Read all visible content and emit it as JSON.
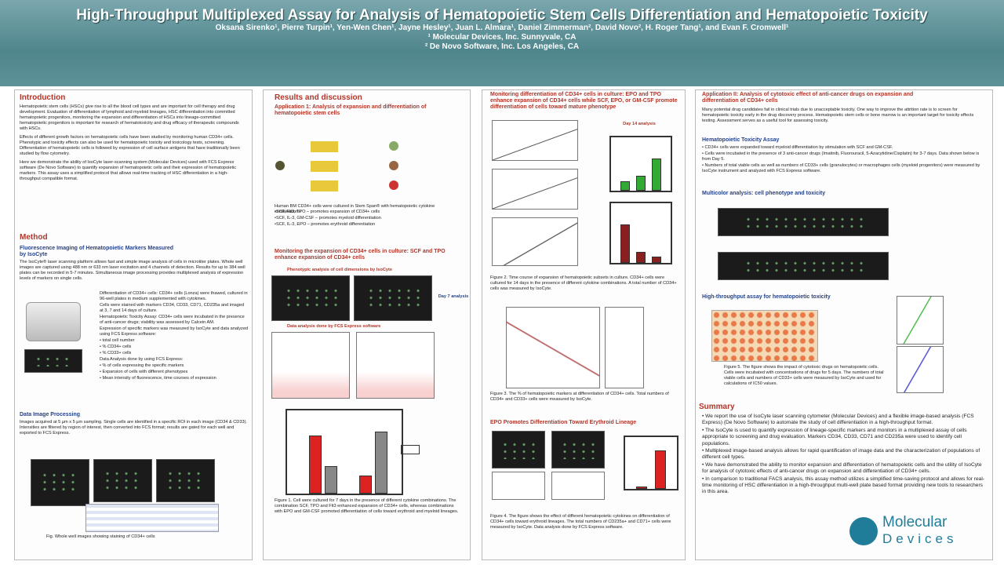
{
  "header": {
    "title": "High-Throughput Multiplexed Assay for Analysis of Hematopoietic Stem Cells Differentiation and Hematopoietic Toxicity",
    "authors": "Oksana Sirenko¹, Pierre Turpin¹, Yen-Wen Chen¹, Jayne Hesley¹, Juan L. Almara¹, Daniel Zimmerman², David Novo², H. Roger Tang¹, and Evan F. Cromwell¹",
    "affiliations": [
      "¹ Molecular Devices, Inc. Sunnyvale, CA",
      "² De Novo Software, Inc. Los Angeles, CA"
    ]
  },
  "intro": {
    "heading": "Introduction",
    "paragraphs": [
      "Hematopoietic stem cells (HSCs) give rise to all the blood cell types and are important for cell therapy and drug development. Evaluation of differentiation of lymphoid and myeloid lineages, HSC differentiation into committed hematopoietic progenitors, monitoring the expansion and differentiation of HSCs into lineage-committed hematopoietic progenitors is important for research of hematotoxicity and drug efficacy of therapeutic compounds with HSCs.",
      "Effects of different growth factors on hematopoietic cells have been studied by monitoring human CD34+ cells. Phenotypic and toxicity effects can also be used for hematopoietic toxicity and toxicology tests, screening. Differentiation of hematopoietic cells is followed by expression of cell surface antigens that have traditionally been studied by flow cytometry.",
      "Here we demonstrate the ability of IsoCyte laser-scanning system (Molecular Devices) used with FCS Express software (De Novo Software) to quantify expansion of hematopoietic cells and their expression of hematopoietic markers. This assay uses a simplified protocol that allows real-time tracking of HSC differentiation in a high-throughput compatible format."
    ]
  },
  "method": {
    "heading": "Method",
    "subheading": "Fluorescence Imaging of Hematopoietic Markers Measured by IsoCyte",
    "text": "The IsoCyte® laser scanning platform allows fast and simple image analysis of cells in microtiter plates. Whole well images are captured using 488 nm or 633 nm laser excitation and 4 channels of detection. Results for up to 384 well plates can be recorded in 5-7 minutes. Simultaneous image processing provides multiplexed analysis of expression levels of markers on single cells.",
    "items": [
      "Differentiation of CD34+ cells: CD34+ cells (Lonza) were thawed, cultured in 96-well plates in medium supplemented with cytokines.",
      "Cells were stained with markers CD34, CD33, CD71, CD235a and imaged at 3, 7 and 14 days of culture.",
      "Hematopoietic Toxicity Assay: CD34+ cells were incubated in the presence of anti-cancer drugs; viability was assessed by Calcein AM.",
      "Expression of specific markers was measured by IsoCyte and data analyzed using FCS Express software:",
      "• total cell number",
      "• % CD34+ cells",
      "• % CD33+ cells",
      "Data Analysis done by using FCS Express:",
      "• % of cells expressing the specific markers",
      "• Expansion of cells with different phenotypes",
      "• Mean intensity of fluorescence, time courses of expression"
    ],
    "processing_heading": "Data Image Processing",
    "processing_text": "Images acquired at 5 µm x 5 µm sampling. Single cells are identified in a specific ROI in each image (CD34 & CD33). Intensities are filtered by region of interest, then converted into FCS format; results are gated for each well and exported to FCS Express.",
    "figure_caption": "Fig. Whole well images showing staining of CD34+ cells"
  },
  "results": {
    "heading": "Results and discussion",
    "app1": "Application 1: Analysis of expansion and differentiation of hematopoietic stem cells",
    "diagram_text": "Human BM CD34+ cells were cultured in Stem Span® with hematopoietic cytokine combinations:",
    "diagram_items": [
      "•SCF, Flt3, TPO – promotes expansion of CD34+ cells",
      "•SCF, IL-3, GM-CSF – promotes myeloid differentiation",
      "•SCF, IL-3, EPO – promotes erythroid differentiation"
    ],
    "monitor": "Monitoring the expansion of CD34+ cells in culture: SCF and TPO enhance expansion of CD34+ cells",
    "pheno": "Phenotypic analysis of cell dimensions by IsoCyte",
    "day_label": "Day 7 analysis",
    "fcs": "Data analysis done by FCS Express software",
    "caption": "Figure 1. Cell were cultured for 7 days in the presence of different cytokine combinations. The combination SCF, TPO and Flt3 enhanced expansion of CD34+ cells, whereas combinations with EPO and GM-CSF promoted differentiation of cells toward erythroid and myeloid lineages."
  },
  "col3": {
    "heading": "Monitoring differentiation of CD34+ cells in culture: EPO and TPO enhance expansion of CD34+ cells while SCF, EPO, or GM-CSF promote differentiation of cells toward mature phenotype",
    "day_label": "Day 14 analysis",
    "caption2": "Figure 2. Time course of expansion of hematopoietic subsets in culture. CD34+ cells were cultured for 14 days in the presence of different cytokine combinations. A total number of CD34+ cells was measured by IsoCyte.",
    "caption3": "Figure 3. The % of hematopoietic markers at differentiation of CD34+ cells. Total numbers of CD34+ and CD33+ cells were measured by IsoCyte.",
    "epo": "EPO Promotes Differentiation Toward Erythroid Lineage",
    "caption4": "Figure 4. The figure shows the effect of different hematopoietic cytokines on differentiation of CD34+ cells toward erythroid lineages. The total numbers of CD235a+ and CD71+ cells were measured by IsoCyte. Data analysis done by FCS Express software."
  },
  "col4": {
    "heading": "Application II: Analysis of cytotoxic effect of anti-cancer drugs on expansion and differentiation of CD34+ cells",
    "text": "Many potential drug candidates fail in clinical trials due to unacceptable toxicity. One way to improve the attrition rate is to screen for hematopoietic toxicity early in the drug discovery process. Hematopoietic stem cells or bone marrow is an important target for toxicity effects testing. Assessment serves as a useful tool for assessing toxicity.",
    "assay_heading": "Hematopoietic Toxicity Assay",
    "bullets": [
      "• CD34+ cells were expanded toward myeloid differentiation by stimulation with SCF and GM-CSF.",
      "• Cells were incubated in the presence of 3 anti-cancer drugs (Imatinib, Fluorouracil, 5-Azacytidine/Cisplatin) for 3-7 days. Data shown below is from Day 5.",
      "• Numbers of total viable cells as well as numbers of CD33+ cells (granulocytes) or macrophages cells (myeloid progenitors) were measured by IsoCyte instrument and analyzed with FCS Express software."
    ],
    "multi": "Multicolor analysis: cell phenotype and toxicity",
    "ht": "High-throughput assay for hematopoietic toxicity",
    "caption": "Figure 5. The figure shows the impact of cytotoxic drugs on hematopoietic cells. Cells were incubated with concentrations of drugs for 5 days. The numbers of total viable cells and numbers of CD33+ cells were measured by IsoCyte and used for calculations of IC50 values.",
    "summary_heading": "Summary",
    "summary": [
      "• We report the use of IsoCyte laser scanning cytometer (Molecular Devices) and a flexible image-based analysis (FCS Express) (De Novo Software) to automate the study of cell differentiation in a high-throughput format.",
      "• The IsoCyte is used to quantify expression of lineage-specific markers and monitors in a multiplexed assay of cells appropriate to screening and drug evaluation. Markers CD34, CD33, CD71 and CD235a were used to identify cell populations.",
      "• Multiplexed image-based analysis allows for rapid quantification of image data and the characterization of populations of different cell types.",
      "• We have demonstrated the ability to monitor expansion and differentiation of hematopoietic cells and the utility of IsoCyte for analysis of cytotoxic effects of anti-cancer drugs on expansion and differentiation of CD34+ cells.",
      "• In comparison to traditional FACS analysis, this assay method utilizes a simplified time-saving protocol and allows for real-time monitoring of HSC differentiation in a high-throughput multi-well plate based format providing new tools to researchers in this area."
    ],
    "logo_top": "Molecular",
    "logo_bottom": "Devices"
  }
}
